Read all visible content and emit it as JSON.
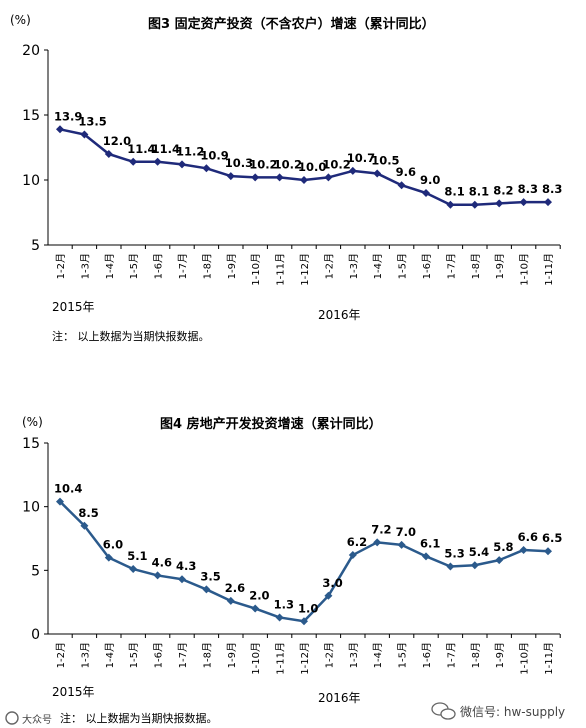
{
  "charts": [
    {
      "title": "图3    固定资产投资（不含农户）增速（累计同比）",
      "unit": "(%)",
      "note": "注：  以上数据为当期快报数据。",
      "years": [
        "2015年",
        "2016年"
      ],
      "line_color": "#1f2a7a"
    },
    {
      "title": "图4    房地产开发投资增速（累计同比）",
      "unit": "(%)",
      "note": "注：  以上数据为当期快报数据。",
      "years": [
        "2015年",
        "2016年"
      ],
      "line_color": "#2b5a8c"
    }
  ],
  "watermark": {
    "left_text": "大众号",
    "right_text": "微信号: hw-supply",
    "icon": "wechat-icon"
  },
  "chart_data": [
    {
      "type": "line",
      "title": "图3    固定资产投资（不含农户）增速（累计同比）",
      "ylabel": "(%)",
      "ylim": [
        5,
        20
      ],
      "yticks": [
        5,
        10,
        15,
        20
      ],
      "grid": false,
      "categories": [
        "1-2月",
        "1-3月",
        "1-4月",
        "1-5月",
        "1-6月",
        "1-7月",
        "1-8月",
        "1-9月",
        "1-10月",
        "1-11月",
        "1-12月",
        "1-2月",
        "1-3月",
        "1-4月",
        "1-5月",
        "1-6月",
        "1-7月",
        "1-8月",
        "1-9月",
        "1-10月",
        "1-11月"
      ],
      "labels": [
        "13.9",
        "13.5",
        "12.0",
        "11.4",
        "11.4",
        "11.2",
        "10.9",
        "10.3",
        "10.2",
        "10.2",
        "10.0",
        "10.2",
        "10.7",
        "10.5",
        "9.6",
        "9.0",
        "8.1",
        "8.1",
        "8.2",
        "8.3",
        "8.3"
      ],
      "values": [
        13.9,
        13.5,
        12.0,
        11.4,
        11.4,
        11.2,
        10.9,
        10.3,
        10.2,
        10.2,
        10.0,
        10.2,
        10.7,
        10.5,
        9.6,
        9.0,
        8.1,
        8.1,
        8.2,
        8.3,
        8.3
      ]
    },
    {
      "type": "line",
      "title": "图4    房地产开发投资增速（累计同比）",
      "ylabel": "(%)",
      "ylim": [
        0,
        15
      ],
      "yticks": [
        0,
        5,
        10,
        15
      ],
      "grid": false,
      "categories": [
        "1-2月",
        "1-3月",
        "1-4月",
        "1-5月",
        "1-6月",
        "1-7月",
        "1-8月",
        "1-9月",
        "1-10月",
        "1-11月",
        "1-12月",
        "1-2月",
        "1-3月",
        "1-4月",
        "1-5月",
        "1-6月",
        "1-7月",
        "1-8月",
        "1-9月",
        "1-10月",
        "1-11月"
      ],
      "labels": [
        "10.4",
        "8.5",
        "6.0",
        "5.1",
        "4.6",
        "4.3",
        "3.5",
        "2.6",
        "2.0",
        "1.3",
        "1.0",
        "3.0",
        "6.2",
        "7.2",
        "7.0",
        "6.1",
        "5.3",
        "5.4",
        "5.8",
        "6.6",
        "6.5"
      ],
      "values": [
        10.4,
        8.5,
        6.0,
        5.1,
        4.6,
        4.3,
        3.5,
        2.6,
        2.0,
        1.3,
        1.0,
        3.0,
        6.2,
        7.2,
        7.0,
        6.1,
        5.3,
        5.4,
        5.8,
        6.6,
        6.5
      ]
    }
  ]
}
